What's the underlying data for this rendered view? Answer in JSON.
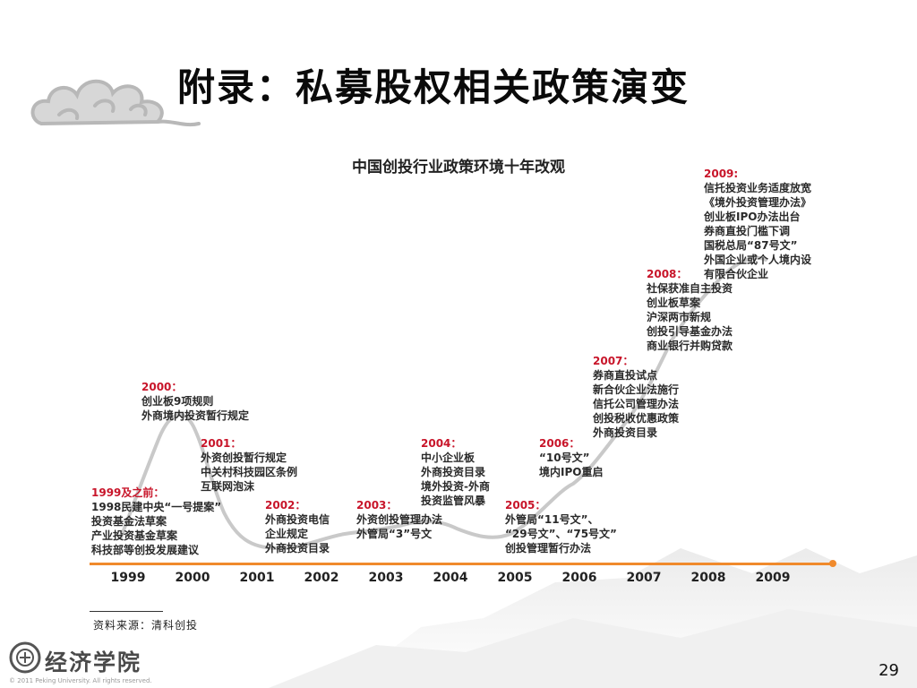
{
  "slide": {
    "title": "附录：私募股权相关政策演变",
    "page_number": "29"
  },
  "chart": {
    "title": "中国创投行业政策环境十年改观"
  },
  "events": [
    {
      "year": "1999及之前：",
      "items": [
        "1998民建中央“一号提案”",
        "投资基金法草案",
        "产业投资基金草案",
        "科技部等创投发展建议"
      ]
    },
    {
      "year": "2000：",
      "items": [
        "创业板9项规则",
        "外商境内投资暂行规定"
      ]
    },
    {
      "year": "2001：",
      "items": [
        "外资创投暂行规定",
        "中关村科技园区条例",
        "互联网泡沫"
      ]
    },
    {
      "year": "2002：",
      "items": [
        "外商投资电信",
        "企业规定",
        "外商投资目录"
      ]
    },
    {
      "year": "2003：",
      "items": [
        "外资创投管理办法",
        "外管局“3”号文"
      ]
    },
    {
      "year": "2004：",
      "items": [
        "中小企业板",
        "外商投资目录",
        "境外投资-外商",
        "投资监管风暴"
      ]
    },
    {
      "year": "2005：",
      "items": [
        "外管局“11号文”、",
        "“29号文”、“75号文”",
        "创投管理暂行办法"
      ]
    },
    {
      "year": "2006：",
      "items": [
        "“10号文”",
        "境内IPO重启"
      ]
    },
    {
      "year": "2007：",
      "items": [
        "券商直投试点",
        "新合伙企业法施行",
        "信托公司管理办法",
        "创投税收优惠政策",
        "外商投资目录"
      ]
    },
    {
      "year": "2008：",
      "items": [
        "社保获准自主投资",
        "创业板草案",
        "沪深两市新规",
        "创投引导基金办法",
        "商业银行并购贷款"
      ]
    },
    {
      "year": "2009:",
      "items": [
        "信托投资业务适度放宽",
        "《境外投资管理办法》",
        "创业板IPO办法出台",
        "券商直投门槛下调",
        "国税总局“87号文”",
        "外国企业或个人境内设",
        "有限合伙企业"
      ]
    }
  ],
  "axis": {
    "years": [
      "1999",
      "2000",
      "2001",
      "2002",
      "2003",
      "2004",
      "2005",
      "2006",
      "2007",
      "2008",
      "2009"
    ]
  },
  "footer": {
    "source": "资料来源：清科创投",
    "logo_text": "经济学院",
    "copyright": "© 2011 Peking University. All rights reserved."
  },
  "colors": {
    "accent": "#f08a2c",
    "year_label": "#c8152a",
    "curve": "#c9c9c9"
  },
  "icons": {
    "cloud": "cloud-decoration-icon",
    "emblem": "university-emblem-icon"
  }
}
